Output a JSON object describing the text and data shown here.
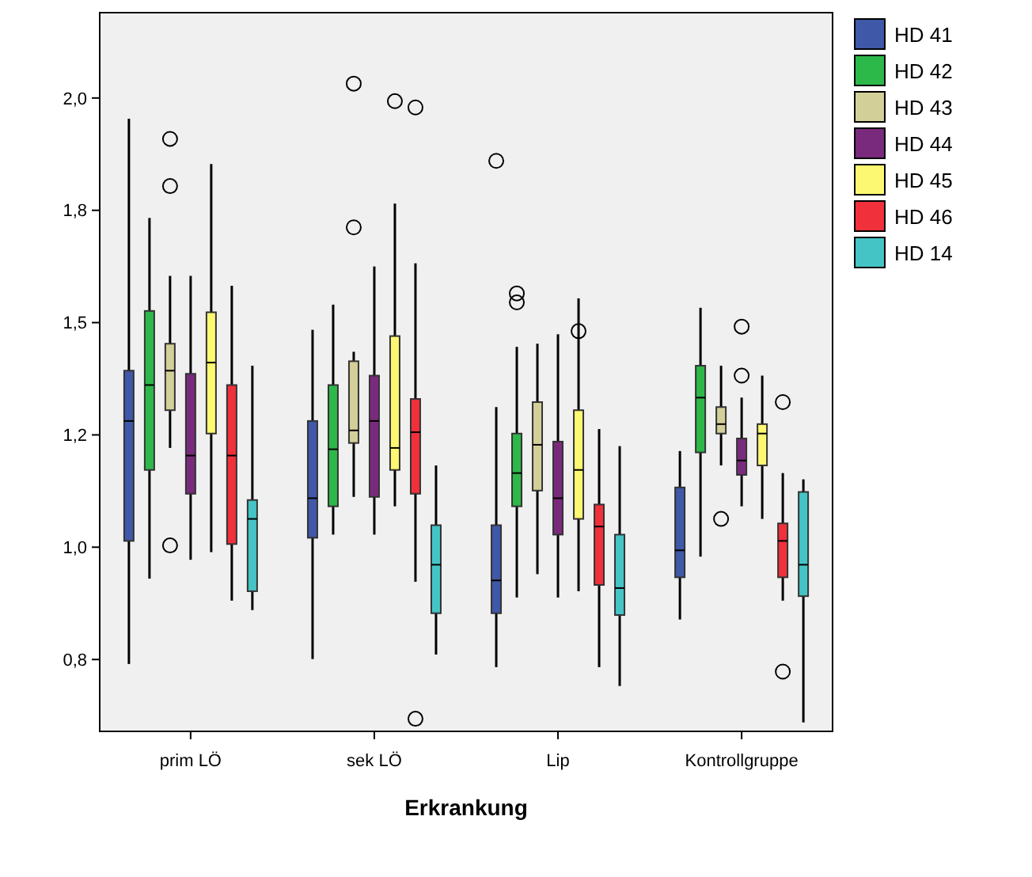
{
  "chart_data": {
    "type": "box",
    "xlabel": "Erkrankung",
    "categories": [
      "prim LÖ",
      "sek LÖ",
      "Lip",
      "Kontrollgruppe"
    ],
    "ylim": [
      0.59,
      2.19
    ],
    "yticks": [
      {
        "value": 0.75,
        "label": "0,8"
      },
      {
        "value": 1.0,
        "label": "1,0"
      },
      {
        "value": 1.25,
        "label": "1,2"
      },
      {
        "value": 1.5,
        "label": "1,5"
      },
      {
        "value": 1.75,
        "label": "1,8"
      },
      {
        "value": 2.0,
        "label": "2,0"
      }
    ],
    "grid": false,
    "legend": "right",
    "series": [
      {
        "name": "HD 41",
        "color": "#3f58a8",
        "boxes": [
          {
            "low": 0.74,
            "q1": 1.014,
            "median": 1.281,
            "q3": 1.393,
            "high": 1.954
          },
          {
            "low": 0.751,
            "q1": 1.021,
            "median": 1.109,
            "q3": 1.281,
            "high": 1.484
          },
          {
            "low": 0.733,
            "q1": 0.853,
            "median": 0.926,
            "q3": 1.049,
            "high": 1.312,
            "outliers": [
              1.86
            ]
          },
          {
            "low": 0.839,
            "q1": 0.933,
            "median": 0.993,
            "q3": 1.133,
            "high": 1.214
          }
        ]
      },
      {
        "name": "HD 42",
        "color": "#2db84a",
        "boxes": [
          {
            "low": 0.93,
            "q1": 1.172,
            "median": 1.361,
            "q3": 1.526,
            "high": 1.733
          },
          {
            "low": 1.028,
            "q1": 1.091,
            "median": 1.218,
            "q3": 1.361,
            "high": 1.54
          },
          {
            "low": 0.888,
            "q1": 1.091,
            "median": 1.165,
            "q3": 1.253,
            "high": 1.446,
            "outliers": [
              1.565,
              1.545
            ]
          },
          {
            "low": 0.979,
            "q1": 1.211,
            "median": 1.333,
            "q3": 1.404,
            "high": 1.533
          }
        ]
      },
      {
        "name": "HD 43",
        "color": "#d3cf98",
        "boxes": [
          {
            "low": 1.221,
            "q1": 1.305,
            "median": 1.393,
            "q3": 1.453,
            "high": 1.604,
            "outliers": [
              1.909,
              1.804,
              1.004
            ]
          },
          {
            "low": 1.112,
            "q1": 1.232,
            "median": 1.26,
            "q3": 1.414,
            "high": 1.435,
            "outliers": [
              2.032,
              1.712
            ]
          },
          {
            "low": 0.94,
            "q1": 1.126,
            "median": 1.228,
            "q3": 1.323,
            "high": 1.453
          },
          {
            "low": 1.182,
            "q1": 1.253,
            "median": 1.274,
            "q3": 1.312,
            "high": 1.404,
            "outliers": [
              1.063
            ]
          }
        ]
      },
      {
        "name": "HD 44",
        "color": "#7a2a7c",
        "boxes": [
          {
            "low": 0.972,
            "q1": 1.119,
            "median": 1.204,
            "q3": 1.386,
            "high": 1.604
          },
          {
            "low": 1.028,
            "q1": 1.112,
            "median": 1.281,
            "q3": 1.382,
            "high": 1.625
          },
          {
            "low": 0.888,
            "q1": 1.028,
            "median": 1.109,
            "q3": 1.235,
            "high": 1.474
          },
          {
            "low": 1.091,
            "q1": 1.161,
            "median": 1.193,
            "q3": 1.242,
            "high": 1.333,
            "outliers": [
              1.491,
              1.382
            ]
          }
        ]
      },
      {
        "name": "HD 45",
        "color": "#fdf871",
        "boxes": [
          {
            "low": 0.989,
            "q1": 1.253,
            "median": 1.411,
            "q3": 1.523,
            "high": 1.853
          },
          {
            "low": 1.091,
            "q1": 1.172,
            "median": 1.221,
            "q3": 1.47,
            "high": 1.765,
            "outliers": [
              1.993
            ]
          },
          {
            "low": 0.902,
            "q1": 1.063,
            "median": 1.172,
            "q3": 1.305,
            "high": 1.554,
            "outliers": [
              1.481
            ]
          },
          {
            "low": 1.063,
            "q1": 1.182,
            "median": 1.253,
            "q3": 1.274,
            "high": 1.382
          }
        ]
      },
      {
        "name": "HD 46",
        "color": "#f0303a",
        "boxes": [
          {
            "low": 0.881,
            "q1": 1.007,
            "median": 1.204,
            "q3": 1.361,
            "high": 1.582
          },
          {
            "low": 0.923,
            "q1": 1.119,
            "median": 1.256,
            "q3": 1.33,
            "high": 1.632,
            "outliers": [
              1.979,
              0.618
            ]
          },
          {
            "low": 0.733,
            "q1": 0.916,
            "median": 1.046,
            "q3": 1.095,
            "high": 1.263
          },
          {
            "low": 0.881,
            "q1": 0.933,
            "median": 1.014,
            "q3": 1.053,
            "high": 1.165,
            "outliers": [
              1.323,
              0.723
            ]
          }
        ]
      },
      {
        "name": "HD 14",
        "color": "#45c4c6",
        "boxes": [
          {
            "low": 0.86,
            "q1": 0.902,
            "median": 1.063,
            "q3": 1.105,
            "high": 1.404
          },
          {
            "low": 0.761,
            "q1": 0.853,
            "median": 0.961,
            "q3": 1.049,
            "high": 1.182
          },
          {
            "low": 0.691,
            "q1": 0.849,
            "median": 0.909,
            "q3": 1.028,
            "high": 1.225
          },
          {
            "low": 0.61,
            "q1": 0.891,
            "median": 0.961,
            "q3": 1.123,
            "high": 1.151
          }
        ]
      }
    ]
  }
}
